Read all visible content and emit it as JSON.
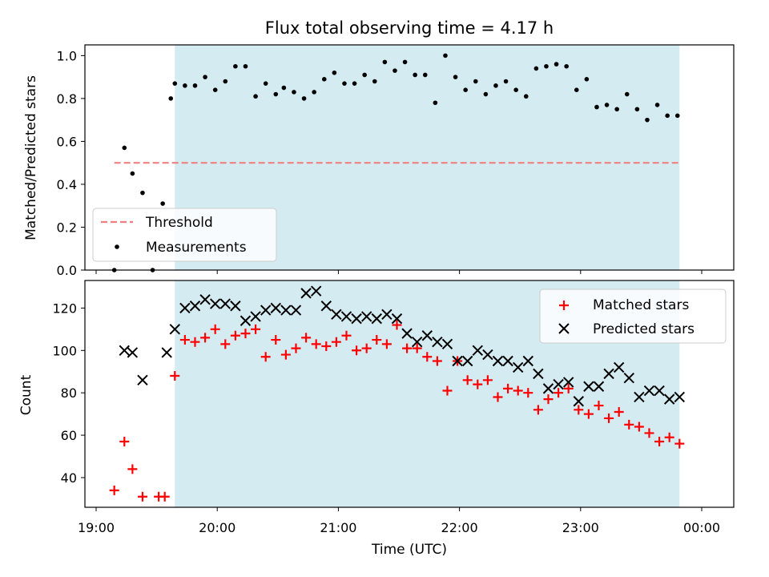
{
  "title": "Flux total observing time = 4.17 h",
  "chart_data": [
    {
      "type": "scatter",
      "panel": "top",
      "ylabel": "Matched/Predicted stars",
      "ylim": [
        0,
        1.05
      ],
      "yticks": [
        0.0,
        0.2,
        0.4,
        0.6,
        0.8,
        1.0
      ],
      "xlim": [
        "19:00",
        "00:00"
      ],
      "shaded_interval": [
        "19:39",
        "23:49"
      ],
      "threshold": 0.5,
      "legend": {
        "placement": "lower-left",
        "entries": [
          "Threshold",
          "Measurements"
        ]
      },
      "series": [
        {
          "name": "Measurements",
          "x": [
            "19:09",
            "19:14",
            "19:18",
            "19:23",
            "19:28",
            "19:33",
            "19:37",
            "19:39",
            "19:44",
            "19:49",
            "19:54",
            "19:59",
            "20:04",
            "20:09",
            "20:14",
            "20:19",
            "20:24",
            "20:29",
            "20:33",
            "20:38",
            "20:43",
            "20:48",
            "20:53",
            "20:58",
            "21:03",
            "21:08",
            "21:13",
            "21:18",
            "21:23",
            "21:28",
            "21:33",
            "21:38",
            "21:43",
            "21:48",
            "21:53",
            "21:58",
            "22:03",
            "22:08",
            "22:13",
            "22:18",
            "22:23",
            "22:28",
            "22:33",
            "22:38",
            "22:43",
            "22:48",
            "22:53",
            "22:58",
            "23:03",
            "23:08",
            "23:13",
            "23:18",
            "23:23",
            "23:28",
            "23:33",
            "23:38",
            "23:43",
            "23:48"
          ],
          "values": [
            0.0,
            0.57,
            0.45,
            0.36,
            0.0,
            0.31,
            0.8,
            0.87,
            0.86,
            0.86,
            0.9,
            0.84,
            0.88,
            0.95,
            0.95,
            0.81,
            0.87,
            0.82,
            0.85,
            0.83,
            0.8,
            0.83,
            0.89,
            0.92,
            0.87,
            0.87,
            0.91,
            0.88,
            0.97,
            0.93,
            0.97,
            0.91,
            0.91,
            0.78,
            1.0,
            0.9,
            0.84,
            0.88,
            0.82,
            0.86,
            0.88,
            0.84,
            0.81,
            0.94,
            0.95,
            0.96,
            0.95,
            0.84,
            0.89,
            0.76,
            0.77,
            0.75,
            0.82,
            0.75,
            0.7,
            0.77,
            0.72,
            0.72
          ]
        }
      ]
    },
    {
      "type": "scatter",
      "panel": "bottom",
      "xlabel": "Time (UTC)",
      "ylabel": "Count",
      "ylim": [
        26,
        133
      ],
      "yticks": [
        40,
        60,
        80,
        100,
        120
      ],
      "xticks": [
        "19:00",
        "20:00",
        "21:00",
        "22:00",
        "23:00",
        "00:00"
      ],
      "xlim": [
        "19:00",
        "00:00"
      ],
      "shaded_interval": [
        "19:39",
        "23:49"
      ],
      "legend": {
        "placement": "top-right",
        "entries": [
          "Matched stars",
          "Predicted stars"
        ]
      },
      "series": [
        {
          "name": "Matched stars",
          "x": [
            "19:09",
            "19:14",
            "19:18",
            "19:23",
            "19:31",
            "19:34",
            "19:39",
            "19:44",
            "19:49",
            "19:54",
            "19:59",
            "20:04",
            "20:09",
            "20:14",
            "20:19",
            "20:24",
            "20:29",
            "20:34",
            "20:39",
            "20:44",
            "20:49",
            "20:54",
            "20:59",
            "21:04",
            "21:09",
            "21:14",
            "21:19",
            "21:24",
            "21:29",
            "21:34",
            "21:39",
            "21:44",
            "21:49",
            "21:54",
            "21:59",
            "22:04",
            "22:09",
            "22:14",
            "22:19",
            "22:24",
            "22:29",
            "22:34",
            "22:39",
            "22:44",
            "22:49",
            "22:54",
            "22:59",
            "23:04",
            "23:09",
            "23:14",
            "23:19",
            "23:24",
            "23:29",
            "23:34",
            "23:39",
            "23:44",
            "23:49"
          ],
          "values": [
            34,
            57,
            44,
            31,
            31,
            31,
            88,
            105,
            104,
            106,
            110,
            103,
            107,
            108,
            110,
            97,
            105,
            98,
            101,
            106,
            103,
            102,
            104,
            107,
            100,
            101,
            105,
            103,
            112,
            101,
            101,
            97,
            95,
            81,
            95,
            86,
            84,
            86,
            78,
            82,
            81,
            80,
            72,
            77,
            80,
            82,
            72,
            70,
            74,
            68,
            71,
            65,
            64,
            61,
            57,
            59,
            56
          ]
        },
        {
          "name": "Predicted stars",
          "x": [
            "19:14",
            "19:18",
            "19:23",
            "19:35",
            "19:39",
            "19:44",
            "19:49",
            "19:54",
            "19:59",
            "20:04",
            "20:09",
            "20:14",
            "20:19",
            "20:24",
            "20:29",
            "20:34",
            "20:39",
            "20:44",
            "20:49",
            "20:54",
            "20:59",
            "21:04",
            "21:09",
            "21:14",
            "21:19",
            "21:24",
            "21:29",
            "21:34",
            "21:39",
            "21:44",
            "21:49",
            "21:54",
            "21:59",
            "22:04",
            "22:09",
            "22:14",
            "22:19",
            "22:24",
            "22:29",
            "22:34",
            "22:39",
            "22:44",
            "22:49",
            "22:54",
            "22:59",
            "23:04",
            "23:09",
            "23:14",
            "23:19",
            "23:24",
            "23:29",
            "23:34",
            "23:39",
            "23:44",
            "23:49"
          ],
          "values": [
            100,
            99,
            86,
            99,
            110,
            120,
            121,
            124,
            122,
            122,
            121,
            114,
            116,
            119,
            120,
            119,
            119,
            127,
            128,
            121,
            117,
            116,
            115,
            116,
            115,
            117,
            115,
            108,
            104,
            107,
            104,
            103,
            95,
            95,
            100,
            98,
            95,
            95,
            92,
            95,
            89,
            82,
            84,
            85,
            76,
            83,
            83,
            89,
            92,
            87,
            78,
            81,
            81,
            77,
            78
          ]
        }
      ]
    }
  ]
}
